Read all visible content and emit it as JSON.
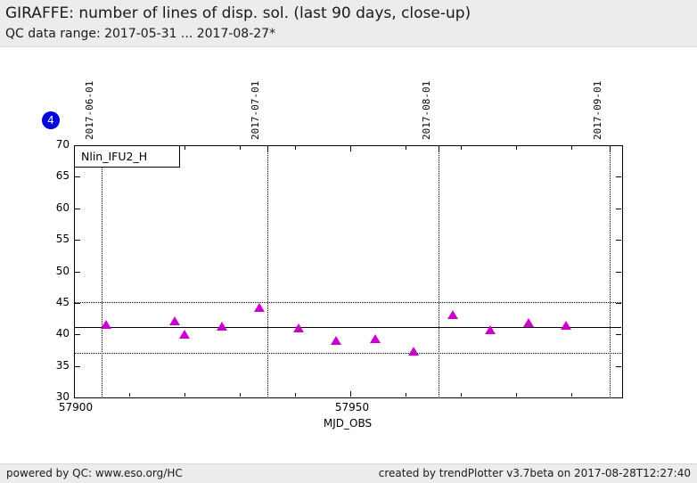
{
  "header": {
    "title": "GIRAFFE: number of lines of disp. sol. (last 90 days, close-up)",
    "subtitle": "QC data range: 2017-05-31 ... 2017-08-27*"
  },
  "nav_badge": {
    "label": "4",
    "color": "#0000dd"
  },
  "chart_data": {
    "type": "scatter",
    "xlabel": "MJD_OBS",
    "xlim": [
      57900,
      57999.2
    ],
    "ylim": [
      30,
      70
    ],
    "y_ticks": [
      30,
      35,
      40,
      45,
      50,
      55,
      60,
      65,
      70
    ],
    "x_ticks_labeled": [
      57900,
      57950
    ],
    "x_ticks_minor": [
      57910,
      57920,
      57930,
      57940,
      57960,
      57970,
      57980,
      57990
    ],
    "top_date_ticks": [
      {
        "mjd": 57905,
        "label": "2017-06-01"
      },
      {
        "mjd": 57935,
        "label": "2017-07-01"
      },
      {
        "mjd": 57966,
        "label": "2017-08-01"
      },
      {
        "mjd": 57997,
        "label": "2017-09-01"
      }
    ],
    "reference_lines": {
      "average": 41.1,
      "upper_threshold": 45.1,
      "lower_threshold": 37.1
    },
    "series": [
      {
        "name": "Nlin_IFU2_H",
        "marker": "filled-triangle-up",
        "color": "#cc00cc",
        "points": [
          [
            57905.8,
            41.4
          ],
          [
            57918.2,
            42.0
          ],
          [
            57920.0,
            39.9
          ],
          [
            57926.7,
            41.1
          ],
          [
            57933.5,
            44.1
          ],
          [
            57940.6,
            40.9
          ],
          [
            57947.5,
            38.9
          ],
          [
            57954.5,
            39.2
          ],
          [
            57961.5,
            37.2
          ],
          [
            57968.5,
            43.0
          ],
          [
            57975.3,
            40.6
          ],
          [
            57982.3,
            41.7
          ],
          [
            57989.1,
            41.3
          ]
        ]
      }
    ],
    "legend_position": "top-left",
    "grid": "vertical-month-lines"
  },
  "footer": {
    "left": "powered by QC: www.eso.org/HC",
    "right": "created by trendPlotter v3.7beta on 2017-08-28T12:27:40"
  }
}
